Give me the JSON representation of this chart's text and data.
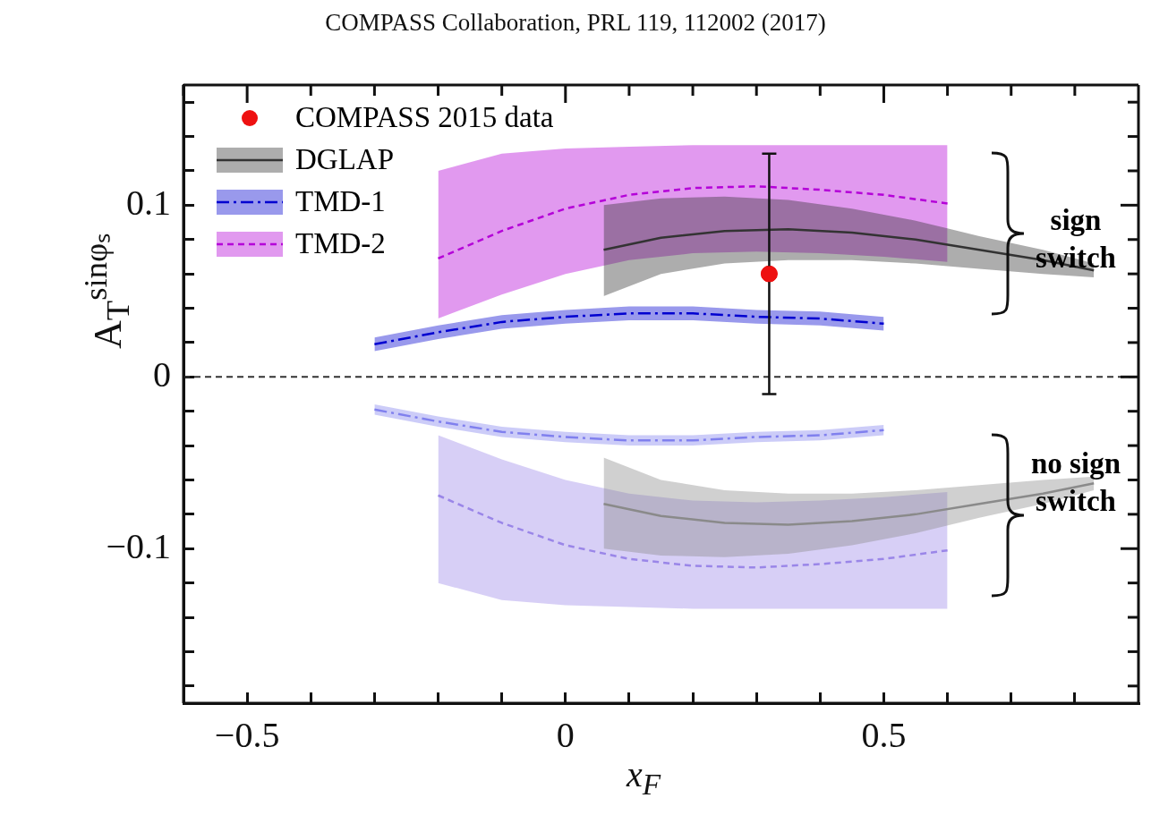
{
  "chart_data": {
    "type": "line",
    "title": "COMPASS Collaboration, PRL 119, 112002 (2017)",
    "xlabel": "x$_{F}$",
    "ylabel": "A$_{T}$$^{sinφₛ}$",
    "xlim": [
      -0.6,
      0.9
    ],
    "ylim": [
      -0.19,
      0.17
    ],
    "xticks": [
      {
        "value": -0.6,
        "label": null
      },
      {
        "value": -0.5,
        "label": "−0.5"
      },
      {
        "value": -0.4,
        "label": null
      },
      {
        "value": -0.3,
        "label": null
      },
      {
        "value": -0.2,
        "label": null
      },
      {
        "value": -0.1,
        "label": null
      },
      0,
      {
        "value": 0.1,
        "label": null
      },
      {
        "value": 0.2,
        "label": null
      },
      {
        "value": 0.3,
        "label": null
      },
      {
        "value": 0.4,
        "label": null
      },
      0.5,
      {
        "value": 0.6,
        "label": null
      },
      {
        "value": 0.7,
        "label": null
      },
      {
        "value": 0.8,
        "label": null
      }
    ],
    "yticks": [
      {
        "value": -0.18,
        "label": null
      },
      {
        "value": -0.16,
        "label": null
      },
      {
        "value": -0.14,
        "label": null
      },
      {
        "value": -0.12,
        "label": null
      },
      {
        "value": -0.1,
        "label": "−0.1"
      },
      {
        "value": -0.08,
        "label": null
      },
      {
        "value": -0.06,
        "label": null
      },
      {
        "value": -0.04,
        "label": null
      },
      {
        "value": -0.02,
        "label": null
      },
      0,
      {
        "value": 0.02,
        "label": null
      },
      {
        "value": 0.04,
        "label": null
      },
      {
        "value": 0.06,
        "label": null
      },
      {
        "value": 0.08,
        "label": null
      },
      0.1,
      {
        "value": 0.12,
        "label": null
      },
      {
        "value": 0.14,
        "label": null
      },
      {
        "value": 0.16,
        "label": null
      }
    ],
    "legend": "top left",
    "ref_lines": [
      {
        "axis": "y",
        "value": 0,
        "color": "#333333",
        "line_style": "dashed"
      }
    ],
    "annotations": [
      "sign switch",
      "no sign switch"
    ],
    "series": [
      {
        "name": "COMPASS 2015 data",
        "type": "scatter",
        "color": "#ee1111",
        "marker": "circle",
        "x": [
          0.32
        ],
        "values": [
          0.06
        ],
        "errors": [
          0.07
        ]
      },
      {
        "name": "DGLAP",
        "type": "line",
        "color": "#333333",
        "line_style": "solid",
        "x": [
          0.06,
          0.15,
          0.25,
          0.35,
          0.45,
          0.55,
          0.65,
          0.75,
          0.83
        ],
        "values": [
          0.074,
          0.081,
          0.085,
          0.086,
          0.084,
          0.08,
          0.074,
          0.068,
          0.062
        ],
        "upper": [
          0.1,
          0.104,
          0.105,
          0.103,
          0.098,
          0.091,
          0.082,
          0.074,
          0.066
        ],
        "lower": [
          0.047,
          0.06,
          0.066,
          0.068,
          0.068,
          0.066,
          0.063,
          0.06,
          0.058
        ]
      },
      {
        "name": "TMD-1",
        "type": "line",
        "color": "#0000d0",
        "line_style": "dashdot",
        "x": [
          -0.3,
          -0.2,
          -0.1,
          0,
          0.1,
          0.2,
          0.3,
          0.4,
          0.5
        ],
        "values": [
          0.019,
          0.026,
          0.032,
          0.035,
          0.037,
          0.037,
          0.035,
          0.034,
          0.031
        ],
        "upper": [
          0.023,
          0.03,
          0.036,
          0.039,
          0.041,
          0.041,
          0.039,
          0.038,
          0.035
        ],
        "lower": [
          0.015,
          0.022,
          0.028,
          0.031,
          0.033,
          0.033,
          0.031,
          0.03,
          0.027
        ]
      },
      {
        "name": "TMD-2",
        "type": "line",
        "color": "#b400d8",
        "line_style": "dashed",
        "x": [
          -0.2,
          -0.1,
          0,
          0.1,
          0.2,
          0.3,
          0.4,
          0.5,
          0.6
        ],
        "values": [
          0.069,
          0.085,
          0.098,
          0.106,
          0.11,
          0.111,
          0.109,
          0.106,
          0.101
        ],
        "upper": [
          0.12,
          0.13,
          0.133,
          0.134,
          0.135,
          0.135,
          0.135,
          0.135,
          0.135
        ],
        "lower": [
          0.034,
          0.048,
          0.06,
          0.068,
          0.072,
          0.073,
          0.072,
          0.07,
          0.067
        ]
      },
      {
        "type": "line",
        "color": "#8a8a8a",
        "line_style": "solid",
        "x": [
          0.06,
          0.15,
          0.25,
          0.35,
          0.45,
          0.55,
          0.65,
          0.75,
          0.83
        ],
        "values": [
          -0.074,
          -0.081,
          -0.085,
          -0.086,
          -0.084,
          -0.08,
          -0.074,
          -0.068,
          -0.062
        ],
        "upper": [
          -0.047,
          -0.06,
          -0.066,
          -0.068,
          -0.068,
          -0.066,
          -0.063,
          -0.06,
          -0.058
        ],
        "lower": [
          -0.1,
          -0.104,
          -0.105,
          -0.103,
          -0.098,
          -0.091,
          -0.082,
          -0.074,
          -0.066
        ]
      },
      {
        "type": "line",
        "color": "#8080ee",
        "line_style": "dashdot",
        "x": [
          -0.3,
          -0.2,
          -0.1,
          0,
          0.1,
          0.2,
          0.3,
          0.4,
          0.5
        ],
        "values": [
          -0.019,
          -0.026,
          -0.032,
          -0.035,
          -0.037,
          -0.037,
          -0.035,
          -0.034,
          -0.031
        ],
        "upper": [
          -0.016,
          -0.023,
          -0.029,
          -0.032,
          -0.034,
          -0.034,
          -0.032,
          -0.031,
          -0.028
        ],
        "lower": [
          -0.022,
          -0.029,
          -0.035,
          -0.038,
          -0.04,
          -0.04,
          -0.038,
          -0.037,
          -0.034
        ]
      },
      {
        "type": "line",
        "color": "#9a86e8",
        "line_style": "dashed",
        "x": [
          -0.2,
          -0.1,
          0,
          0.1,
          0.2,
          0.3,
          0.4,
          0.5,
          0.6
        ],
        "values": [
          -0.069,
          -0.085,
          -0.098,
          -0.106,
          -0.11,
          -0.111,
          -0.109,
          -0.106,
          -0.101
        ],
        "upper": [
          -0.034,
          -0.048,
          -0.06,
          -0.068,
          -0.072,
          -0.073,
          -0.072,
          -0.07,
          -0.067
        ],
        "lower": [
          -0.12,
          -0.13,
          -0.133,
          -0.134,
          -0.135,
          -0.135,
          -0.135,
          -0.135,
          -0.135
        ]
      }
    ]
  }
}
